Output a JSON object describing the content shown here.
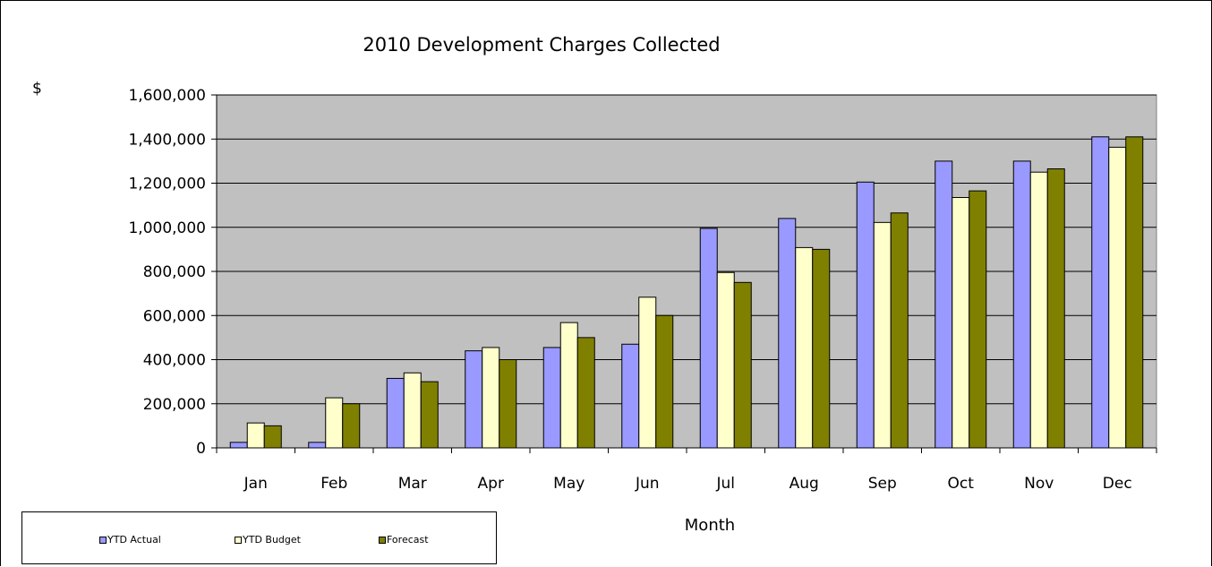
{
  "chart_data": {
    "type": "bar",
    "title": "2010 Development Charges Collected",
    "ylabel": "$",
    "xlabel": "Month",
    "ylim": [
      0,
      1600000
    ],
    "yticks": [
      0,
      200000,
      400000,
      600000,
      800000,
      1000000,
      1200000,
      1400000,
      1600000
    ],
    "ytick_labels": [
      "0",
      "200,000",
      "400,000",
      "600,000",
      "800,000",
      "1,000,000",
      "1,200,000",
      "1,400,000",
      "1,600,000"
    ],
    "categories": [
      "Jan",
      "Feb",
      "Mar",
      "Apr",
      "May",
      "Jun",
      "Jul",
      "Aug",
      "Sep",
      "Oct",
      "Nov",
      "Dec"
    ],
    "series": [
      {
        "name": "YTD Actual",
        "color": "#9999ff",
        "values": [
          25000,
          25000,
          315000,
          440000,
          455000,
          470000,
          995000,
          1040000,
          1205000,
          1300000,
          1300000,
          1410000
        ]
      },
      {
        "name": "YTD Budget",
        "color": "#ffffcc",
        "values": [
          113000,
          227000,
          340000,
          455000,
          568000,
          683000,
          795000,
          908000,
          1022000,
          1135000,
          1250000,
          1363000
        ]
      },
      {
        "name": "Forecast",
        "color": "#808000",
        "values": [
          100000,
          200000,
          300000,
          400000,
          500000,
          600000,
          750000,
          900000,
          1065000,
          1165000,
          1265000,
          1410000
        ]
      }
    ],
    "grid": true,
    "plot_background": "#c0c0c0",
    "legend_position": "bottom-left"
  }
}
